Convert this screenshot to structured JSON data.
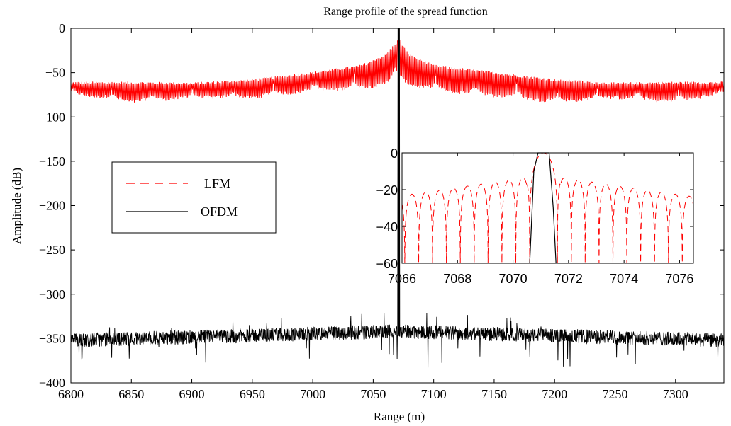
{
  "chart_data": [
    {
      "type": "line",
      "title": "Range profile of the spread function",
      "xlabel": "Range (m)",
      "ylabel": "Amplitude (dB)",
      "xlim": [
        6800,
        7340
      ],
      "ylim": [
        -400,
        0
      ],
      "xticks": [
        6800,
        6850,
        6900,
        6950,
        7000,
        7050,
        7100,
        7150,
        7200,
        7250,
        7300
      ],
      "yticks": [
        0,
        -50,
        -100,
        -150,
        -200,
        -250,
        -300,
        -350,
        -400
      ],
      "grid": false,
      "legend_position": "middle-left",
      "series": [
        {
          "name": "LFM",
          "color": "#ff0000",
          "style": "dashed",
          "description_points": {
            "x": [
              6800,
              6850,
              6900,
              6950,
              7000,
              7040,
              7060,
              7071,
              7080,
              7100,
              7150,
              7200,
              7250,
              7300,
              7340
            ],
            "envelope_upper": [
              -63,
              -63,
              -64,
              -60,
              -52,
              -44,
              -32,
              -15,
              -32,
              -44,
              -52,
              -60,
              -64,
              -63,
              -63
            ],
            "envelope_lower": [
              -75,
              -85,
              -80,
              -80,
              -72,
              -70,
              -65,
              -60,
              -65,
              -72,
              -78,
              -85,
              -80,
              -85,
              -75
            ]
          }
        },
        {
          "name": "OFDM",
          "color": "#000000",
          "style": "solid",
          "description_points": {
            "x": [
              6800,
              7071,
              7340
            ],
            "noise_floor_mean": [
              -350,
              -340,
              -350
            ],
            "peak": 0,
            "peak_x": 7071
          }
        }
      ]
    },
    {
      "type": "line",
      "title": "",
      "xlabel": "",
      "ylabel": "",
      "xlim": [
        7066,
        7076.5
      ],
      "ylim": [
        -60,
        0
      ],
      "xticks": [
        7066,
        7068,
        7070,
        7072,
        7074,
        7076
      ],
      "yticks": [
        0,
        -20,
        -40,
        -60
      ],
      "series": [
        {
          "name": "LFM",
          "color": "#ff0000",
          "style": "dashed",
          "mainlobe_x": [
            7070.5,
            7070.8,
            7071.0,
            7071.2,
            7071.5
          ],
          "mainlobe_y": [
            -30,
            -5,
            0,
            -5,
            -30
          ],
          "sidelobe_peaks_x": [
            7066.6,
            7067.1,
            7067.5,
            7068.1,
            7068.6,
            7069.1,
            7069.6,
            7070.1,
            7072.1,
            7072.6,
            7073.1,
            7073.6,
            7074.1,
            7074.6,
            7075.1,
            7075.6,
            7076.1
          ],
          "sidelobe_peaks_y": [
            -23,
            -25,
            -23,
            -24,
            -20,
            -21,
            -18,
            -14,
            -14,
            -18,
            -20,
            -20,
            -21,
            -22,
            -23,
            -24,
            -23
          ]
        },
        {
          "name": "OFDM",
          "color": "#000000",
          "style": "solid",
          "x": [
            7070.6,
            7070.75,
            7070.9,
            7071.3,
            7071.45,
            7071.55
          ],
          "y": [
            -60,
            -10,
            0,
            0,
            -30,
            -60
          ]
        }
      ]
    }
  ]
}
